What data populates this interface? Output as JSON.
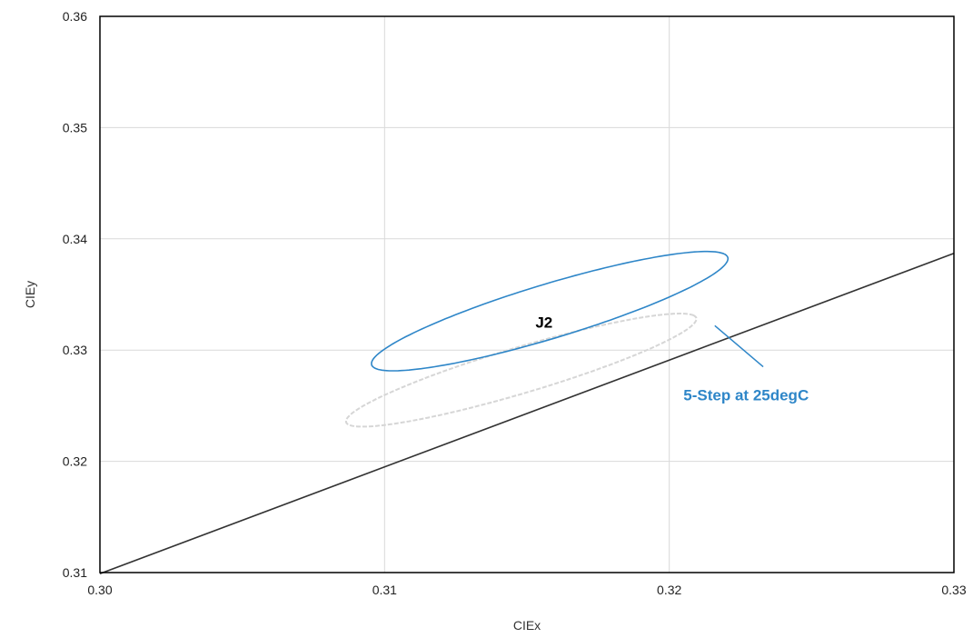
{
  "chart_data": {
    "type": "scatter",
    "title": "",
    "xlabel": "CIEx",
    "ylabel": "CIEy",
    "xlim": [
      0.3,
      0.33
    ],
    "ylim": [
      0.31,
      0.36
    ],
    "x_ticks": [
      {
        "value": 0.3,
        "label": "0.30"
      },
      {
        "value": 0.31,
        "label": "0.31"
      },
      {
        "value": 0.32,
        "label": "0.32"
      },
      {
        "value": 0.33,
        "label": "0.33"
      }
    ],
    "y_ticks": [
      {
        "value": 0.31,
        "label": "0.31"
      },
      {
        "value": 0.32,
        "label": "0.32"
      },
      {
        "value": 0.33,
        "label": "0.33"
      },
      {
        "value": 0.34,
        "label": "0.34"
      },
      {
        "value": 0.35,
        "label": "0.35"
      },
      {
        "value": 0.36,
        "label": "0.36"
      }
    ],
    "grid": true,
    "series": [
      {
        "kind": "ellipse",
        "style": "dashed",
        "color": "#d6d6d6",
        "center": [
          0.3148,
          0.3282
        ],
        "semi_axes": [
          0.0078,
          0.0017
        ],
        "angle_deg": 39
      },
      {
        "name": "5-Step at 25degC",
        "kind": "ellipse",
        "style": "solid",
        "color": "#2e86c8",
        "center": [
          0.3158,
          0.3335
        ],
        "semi_axes": [
          0.008,
          0.002
        ],
        "angle_deg": 40
      },
      {
        "kind": "line",
        "color": "#333333",
        "x": [
          0.3,
          0.33
        ],
        "y": [
          0.3099,
          0.3387
        ]
      }
    ],
    "annotations": [
      {
        "text": "J2",
        "x": 0.3156,
        "y": 0.332,
        "color": "#000000"
      },
      {
        "text": "5-Step at 25degC",
        "x": 0.3227,
        "y": 0.3255,
        "color": "#2e86c8",
        "leader_from": [
          0.3216,
          0.3322
        ],
        "leader_to": [
          0.3233,
          0.3285
        ]
      }
    ]
  }
}
